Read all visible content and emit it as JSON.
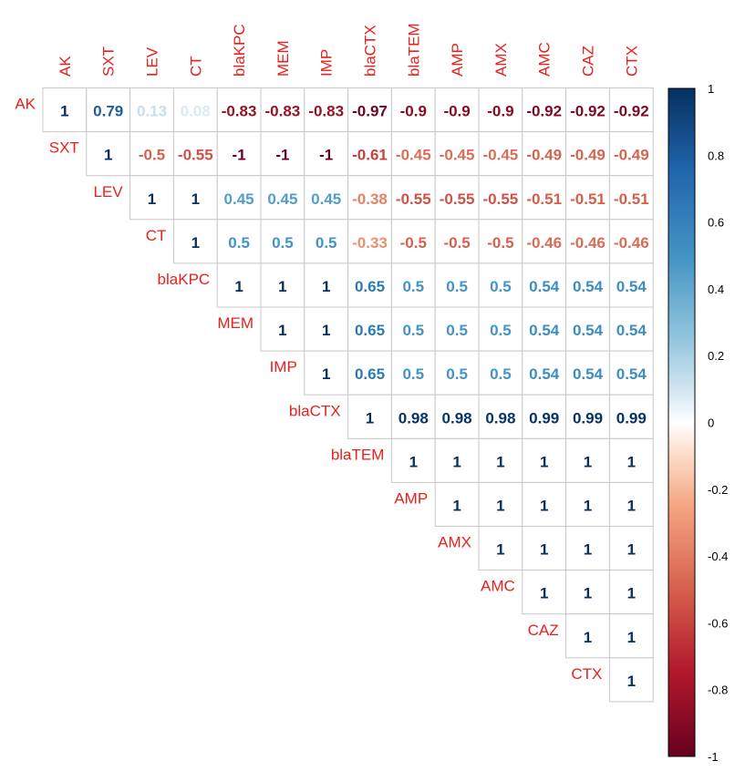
{
  "chart_data": {
    "type": "heatmap",
    "variables": [
      "AK",
      "SXT",
      "LEV",
      "CT",
      "blaKPC",
      "MEM",
      "IMP",
      "blaCTX",
      "blaTEM",
      "AMP",
      "AMX",
      "AMC",
      "CAZ",
      "CTX"
    ],
    "matrix_upper_rows": [
      [
        1,
        0.79,
        0.13,
        0.08,
        -0.83,
        -0.83,
        -0.83,
        -0.97,
        -0.9,
        -0.9,
        -0.9,
        -0.92,
        -0.92,
        -0.92
      ],
      [
        1,
        -0.5,
        -0.55,
        -1,
        -1,
        -1,
        -0.61,
        -0.45,
        -0.45,
        -0.45,
        -0.49,
        -0.49,
        -0.49
      ],
      [
        1,
        1,
        0.45,
        0.45,
        0.45,
        -0.38,
        -0.55,
        -0.55,
        -0.55,
        -0.51,
        -0.51,
        -0.51
      ],
      [
        1,
        0.5,
        0.5,
        0.5,
        -0.33,
        -0.5,
        -0.5,
        -0.5,
        -0.46,
        -0.46,
        -0.46
      ],
      [
        1,
        1,
        1,
        0.65,
        0.5,
        0.5,
        0.5,
        0.54,
        0.54,
        0.54
      ],
      [
        1,
        1,
        0.65,
        0.5,
        0.5,
        0.5,
        0.54,
        0.54,
        0.54
      ],
      [
        1,
        0.65,
        0.5,
        0.5,
        0.5,
        0.54,
        0.54,
        0.54
      ],
      [
        1,
        0.98,
        0.98,
        0.98,
        0.99,
        0.99,
        0.99
      ],
      [
        1,
        1,
        1,
        1,
        1,
        1
      ],
      [
        1,
        1,
        1,
        1,
        1
      ],
      [
        1,
        1,
        1,
        1
      ],
      [
        1,
        1,
        1
      ],
      [
        1,
        1
      ],
      [
        1
      ]
    ],
    "value_range": [
      -1,
      1
    ],
    "colorbar_ticks": [
      1,
      0.8,
      0.6,
      0.4,
      0.2,
      0,
      -0.2,
      -0.4,
      -0.6,
      -0.8,
      -1
    ],
    "colors": {
      "negative_end": "#67001F",
      "neutral": "#FFFFFF",
      "positive_end": "#053061",
      "label_color": "#E8201E",
      "grid_color": "#C8C8C8"
    },
    "legend_position": "right"
  }
}
